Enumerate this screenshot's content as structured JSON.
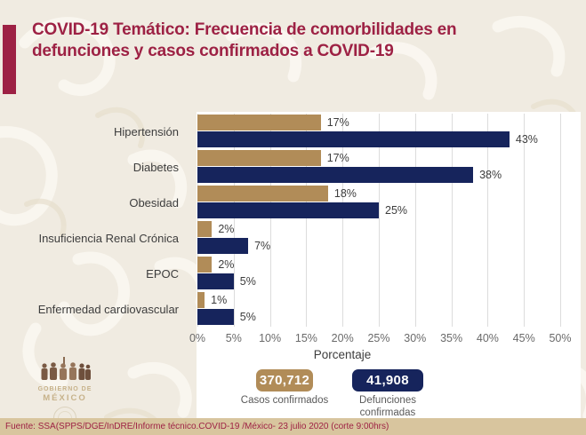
{
  "title": "COVID-19 Temático: Frecuencia de comorbilidades en defunciones y casos confirmados a COVID-19",
  "chart_data": {
    "type": "bar",
    "orientation": "horizontal",
    "title": "Frecuencia de comorbilidades en defunciones y casos confirmados a COVID-19",
    "categories": [
      "Hipertensión",
      "Diabetes",
      "Obesidad",
      "Insuficiencia Renal Crónica",
      "EPOC",
      "Enfermedad cardiovascular"
    ],
    "series": [
      {
        "name": "Casos confirmados",
        "color": "#b18c58",
        "values": [
          17,
          17,
          18,
          2,
          2,
          1
        ]
      },
      {
        "name": "Defunciones confirmadas",
        "color": "#16245c",
        "values": [
          43,
          38,
          25,
          7,
          5,
          5
        ]
      }
    ],
    "value_suffix": "%",
    "xlabel": "Porcentaje",
    "ylabel": "",
    "xlim": [
      0,
      50
    ],
    "xticks": [
      "0%",
      "5%",
      "10%",
      "15%",
      "20%",
      "25%",
      "30%",
      "35%",
      "40%",
      "45%",
      "50%"
    ],
    "grid": true,
    "legend_position": "bottom"
  },
  "legend": {
    "cases": {
      "value": "370,712",
      "label": "Casos confirmados",
      "color": "#b18c58"
    },
    "deaths": {
      "value": "41,908",
      "label": "Defunciones confirmadas",
      "color": "#16245c"
    }
  },
  "logo": {
    "line1": "GOBIERNO DE",
    "line2": "MÉXICO"
  },
  "footer": {
    "source": "Fuente: SSA(SPPS/DGE/InDRE/Informe técnico.COVID-19 /México- 23 julio 2020 (corte 9:00hrs)"
  },
  "colors": {
    "title": "#9d2144",
    "accent_bar": "#9d2144",
    "background": "#f0ebe1",
    "plot_background": "#ffffff",
    "gridline": "#dcdcdc",
    "footer_bar": "#d8c59e",
    "footer_text": "#9d2144"
  }
}
